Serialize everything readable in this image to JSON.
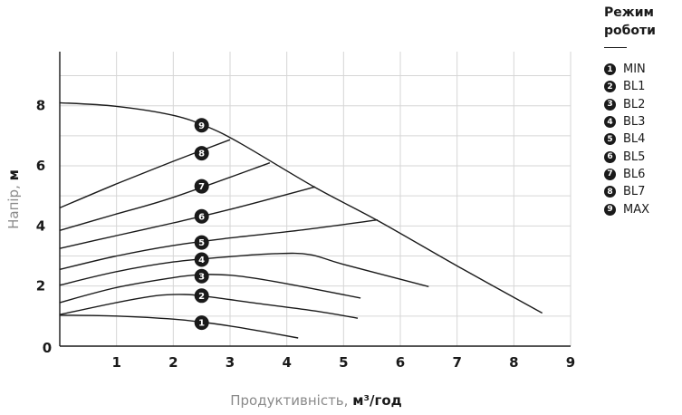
{
  "chart_data": {
    "type": "line",
    "title": "",
    "xlabel": "Продуктивність, ",
    "xlabel_unit": "м³/год",
    "ylabel": "Напір, ",
    "ylabel_unit": "м",
    "xlim": [
      0,
      9
    ],
    "ylim": [
      0,
      9.8
    ],
    "x_ticks": [
      "0",
      "1",
      "2",
      "3",
      "4",
      "5",
      "6",
      "7",
      "8",
      "9"
    ],
    "y_ticks": [
      {
        "value": 2,
        "label": "2"
      },
      {
        "value": 4,
        "label": "4"
      },
      {
        "value": 6,
        "label": "6"
      },
      {
        "value": 8,
        "label": "8"
      }
    ],
    "grid": true,
    "legend_title": "Режим роботи",
    "legend_placement": "right",
    "series": [
      {
        "badge": "1",
        "name": "MIN",
        "points": [
          [
            0,
            1.03
          ],
          [
            1,
            1.0
          ],
          [
            2,
            0.9
          ],
          [
            2.5,
            0.8
          ],
          [
            3,
            0.67
          ],
          [
            3.6,
            0.48
          ],
          [
            4.2,
            0.27
          ]
        ],
        "marker": [
          2.5,
          0.78
        ]
      },
      {
        "badge": "2",
        "name": "BL1",
        "points": [
          [
            0,
            1.05
          ],
          [
            1,
            1.45
          ],
          [
            1.7,
            1.68
          ],
          [
            2.2,
            1.72
          ],
          [
            2.6,
            1.65
          ],
          [
            3.5,
            1.42
          ],
          [
            4.5,
            1.17
          ],
          [
            5.25,
            0.93
          ]
        ],
        "marker": [
          2.5,
          1.68
        ]
      },
      {
        "badge": "3",
        "name": "BL2",
        "points": [
          [
            0,
            1.45
          ],
          [
            1,
            1.95
          ],
          [
            2,
            2.28
          ],
          [
            2.5,
            2.38
          ],
          [
            3,
            2.36
          ],
          [
            3.5,
            2.24
          ],
          [
            4.3,
            1.97
          ],
          [
            5.3,
            1.6
          ]
        ],
        "marker": [
          2.5,
          2.33
        ]
      },
      {
        "badge": "4",
        "name": "BL3",
        "points": [
          [
            0,
            2.03
          ],
          [
            1,
            2.48
          ],
          [
            2,
            2.8
          ],
          [
            3,
            2.98
          ],
          [
            3.8,
            3.08
          ],
          [
            4.4,
            3.05
          ],
          [
            5.0,
            2.72
          ],
          [
            6.5,
            1.98
          ]
        ],
        "marker": [
          2.5,
          2.88
        ]
      },
      {
        "badge": "5",
        "name": "BL4",
        "points": [
          [
            0,
            2.55
          ],
          [
            1,
            3.0
          ],
          [
            2,
            3.35
          ],
          [
            3,
            3.6
          ],
          [
            4.2,
            3.85
          ],
          [
            5.6,
            4.2
          ]
        ],
        "marker": [
          2.5,
          3.45
        ]
      },
      {
        "badge": "6",
        "name": "BL5",
        "points": [
          [
            0,
            3.25
          ],
          [
            1,
            3.68
          ],
          [
            2,
            4.1
          ],
          [
            3,
            4.55
          ],
          [
            4.5,
            5.3
          ]
        ],
        "marker": [
          2.5,
          4.32
        ]
      },
      {
        "badge": "7",
        "name": "BL6",
        "points": [
          [
            0,
            3.85
          ],
          [
            1,
            4.4
          ],
          [
            2,
            4.95
          ],
          [
            3.7,
            6.1
          ]
        ],
        "marker": [
          2.5,
          5.32
        ]
      },
      {
        "badge": "8",
        "name": "BL7",
        "points": [
          [
            0,
            4.6
          ],
          [
            1,
            5.4
          ],
          [
            2,
            6.15
          ],
          [
            3.0,
            6.87
          ]
        ],
        "marker": [
          2.5,
          6.42
        ]
      },
      {
        "badge": "9",
        "name": "MAX",
        "points": [
          [
            0,
            8.1
          ],
          [
            1,
            7.98
          ],
          [
            2,
            7.68
          ],
          [
            2.6,
            7.3
          ],
          [
            3.2,
            6.73
          ],
          [
            4.5,
            5.28
          ],
          [
            5.6,
            4.18
          ],
          [
            7,
            2.67
          ],
          [
            8.5,
            1.1
          ]
        ],
        "marker": [
          2.5,
          7.35
        ]
      }
    ]
  }
}
